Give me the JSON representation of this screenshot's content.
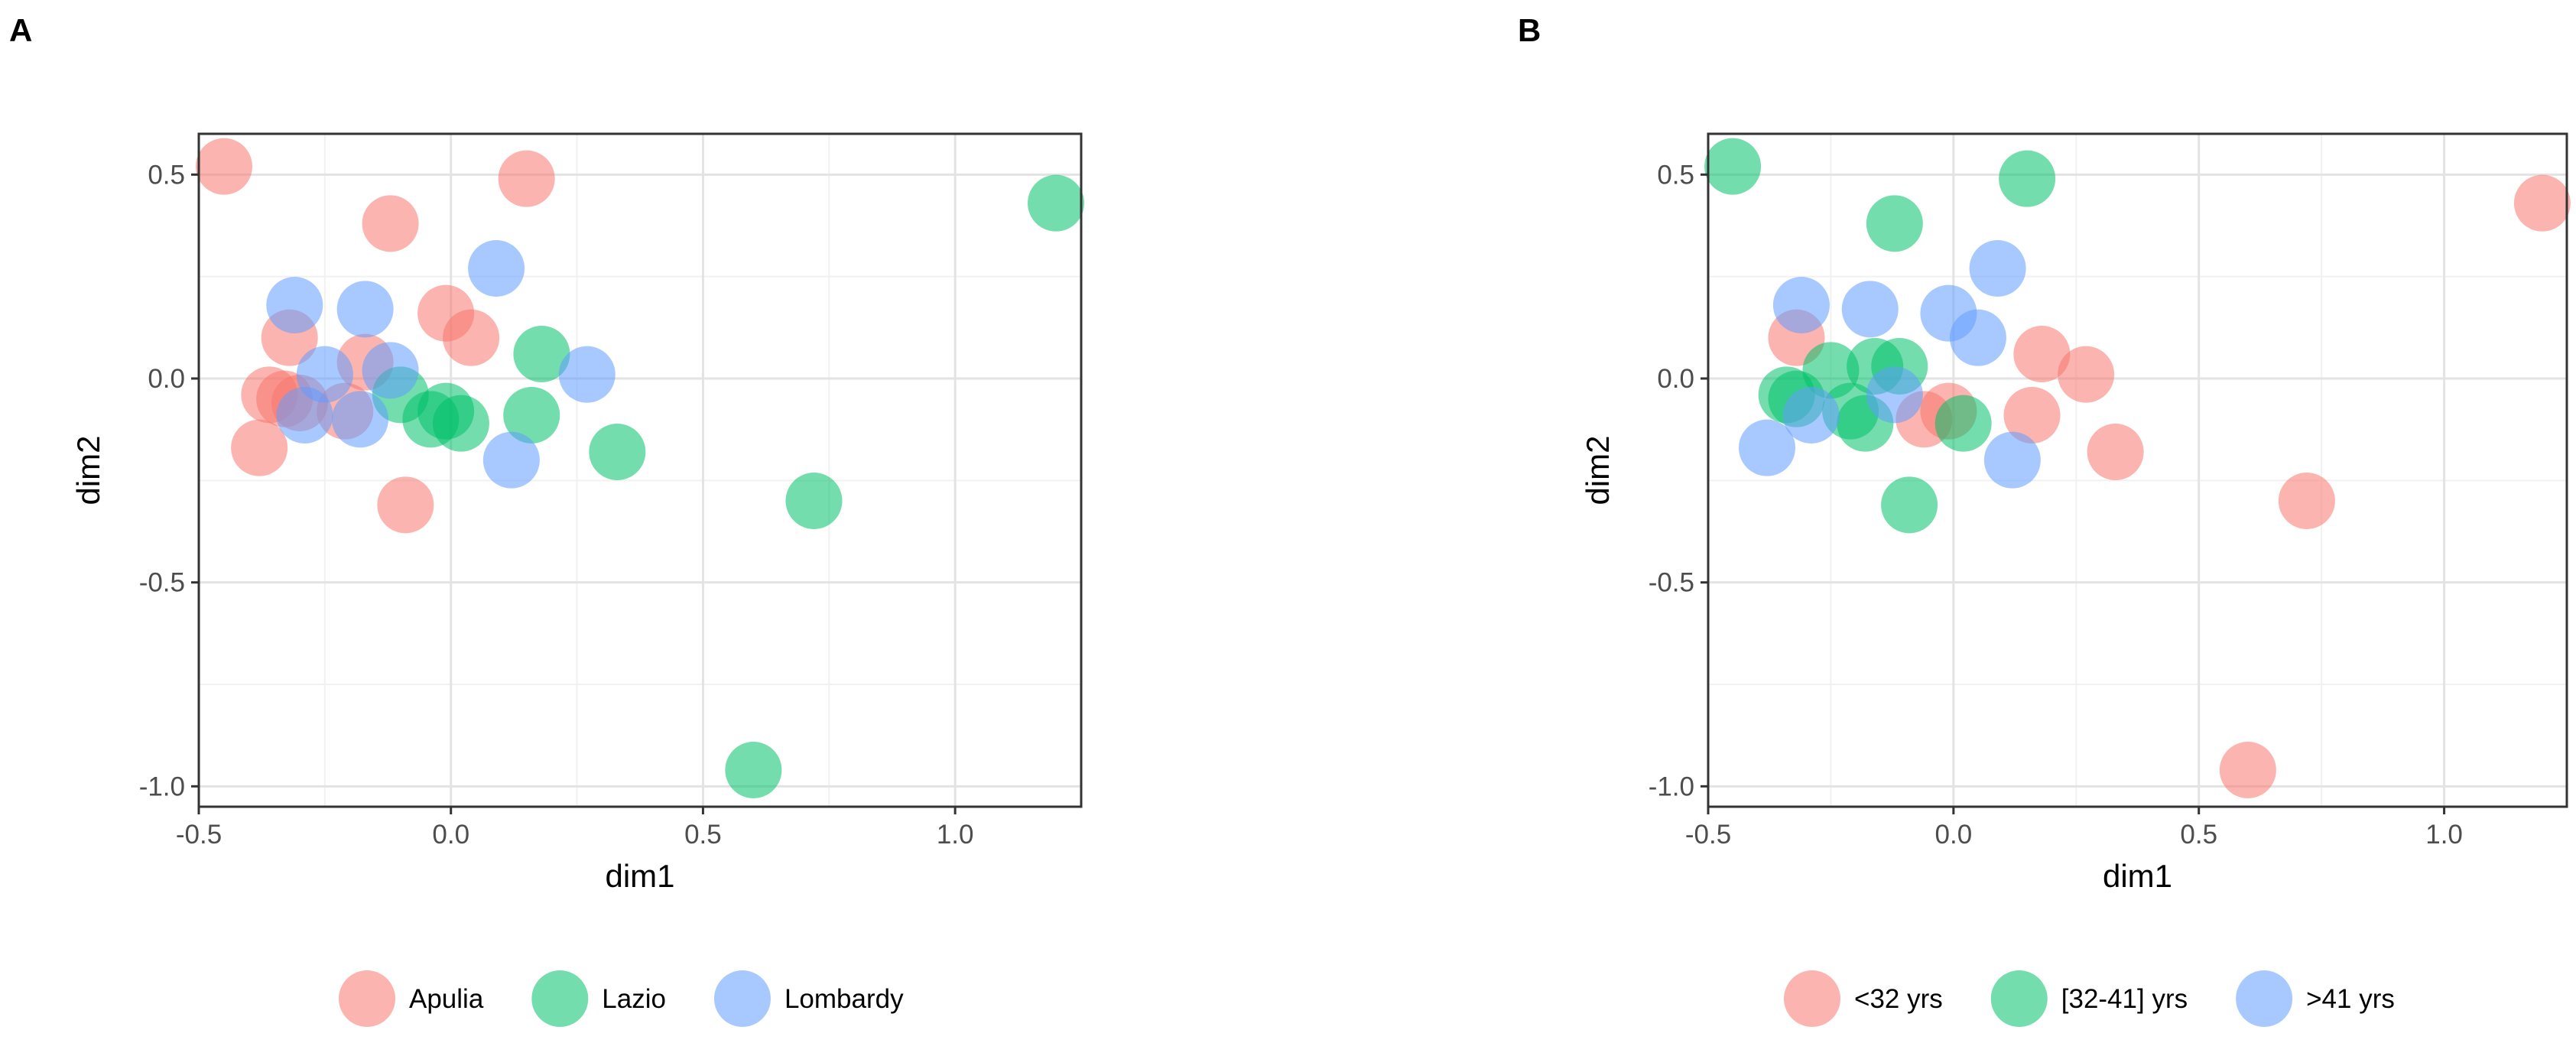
{
  "figure": {
    "panel_a_letter": "A",
    "panel_b_letter": "B"
  },
  "colors": {
    "red": "#F8766D",
    "green": "#00C16A",
    "blue": "#619CFF"
  },
  "chart_data": [
    {
      "type": "scatter",
      "panel": "A",
      "xlabel": "dim1",
      "ylabel": "dim2",
      "xlim": [
        -0.5,
        1.25
      ],
      "ylim": [
        -1.05,
        0.6
      ],
      "xticks": [
        -0.5,
        0.0,
        0.5,
        1.0
      ],
      "xtick_labels": [
        "-0.5",
        "0.0",
        "0.5",
        "1.0"
      ],
      "yticks": [
        -1.0,
        -0.5,
        0.0,
        0.5
      ],
      "ytick_labels": [
        "-1.0",
        "-0.5",
        "0.0",
        "0.5"
      ],
      "legend_position": "bottom",
      "grid": true,
      "series": [
        {
          "name": "Apulia",
          "color": "#F8766D",
          "x": [
            -0.45,
            0.15,
            -0.12,
            -0.01,
            0.04,
            -0.32,
            -0.17,
            -0.36,
            -0.33,
            -0.3,
            -0.21,
            -0.38,
            -0.09
          ],
          "y": [
            0.52,
            0.49,
            0.38,
            0.16,
            0.1,
            0.1,
            0.04,
            -0.04,
            -0.05,
            -0.06,
            -0.08,
            -0.17,
            -0.31
          ]
        },
        {
          "name": "Lazio",
          "color": "#00C16A",
          "x": [
            1.2,
            0.18,
            -0.1,
            -0.04,
            -0.01,
            0.02,
            0.16,
            0.33,
            0.72,
            0.6
          ],
          "y": [
            0.43,
            0.06,
            -0.04,
            -0.1,
            -0.08,
            -0.11,
            -0.09,
            -0.18,
            -0.3,
            -0.96
          ]
        },
        {
          "name": "Lombardy",
          "color": "#619CFF",
          "x": [
            0.09,
            -0.31,
            -0.17,
            -0.25,
            -0.12,
            0.27,
            -0.29,
            -0.18,
            0.12
          ],
          "y": [
            0.27,
            0.18,
            0.17,
            0.01,
            0.02,
            0.01,
            -0.09,
            -0.1,
            -0.2
          ]
        }
      ]
    },
    {
      "type": "scatter",
      "panel": "B",
      "xlabel": "dim1",
      "ylabel": "dim2",
      "xlim": [
        -0.5,
        1.25
      ],
      "ylim": [
        -1.05,
        0.6
      ],
      "xticks": [
        -0.5,
        0.0,
        0.5,
        1.0
      ],
      "xtick_labels": [
        "-0.5",
        "0.0",
        "0.5",
        "1.0"
      ],
      "yticks": [
        -1.0,
        -0.5,
        0.0,
        0.5
      ],
      "ytick_labels": [
        "-1.0",
        "-0.5",
        "0.0",
        "0.5"
      ],
      "legend_position": "bottom",
      "grid": true,
      "series": [
        {
          "name": "<32 yrs",
          "color": "#F8766D",
          "x": [
            1.2,
            -0.32,
            0.18,
            0.27,
            -0.06,
            0.16,
            0.33,
            0.72,
            0.6,
            -0.01
          ],
          "y": [
            0.43,
            0.1,
            0.06,
            0.01,
            -0.1,
            -0.09,
            -0.18,
            -0.3,
            -0.96,
            -0.08
          ]
        },
        {
          "name": "[32-41] yrs",
          "color": "#00C16A",
          "x": [
            -0.45,
            0.15,
            -0.12,
            -0.25,
            -0.16,
            -0.11,
            -0.34,
            -0.32,
            -0.21,
            -0.18,
            0.02,
            -0.09
          ],
          "y": [
            0.52,
            0.49,
            0.38,
            0.02,
            0.03,
            0.03,
            -0.04,
            -0.05,
            -0.08,
            -0.11,
            -0.11,
            -0.31
          ]
        },
        {
          "name": ">41 yrs",
          "color": "#619CFF",
          "x": [
            0.09,
            -0.31,
            -0.17,
            -0.01,
            0.05,
            -0.29,
            -0.12,
            -0.38,
            0.12
          ],
          "y": [
            0.27,
            0.18,
            0.17,
            0.16,
            0.1,
            -0.09,
            -0.04,
            -0.17,
            -0.2
          ]
        }
      ]
    }
  ]
}
